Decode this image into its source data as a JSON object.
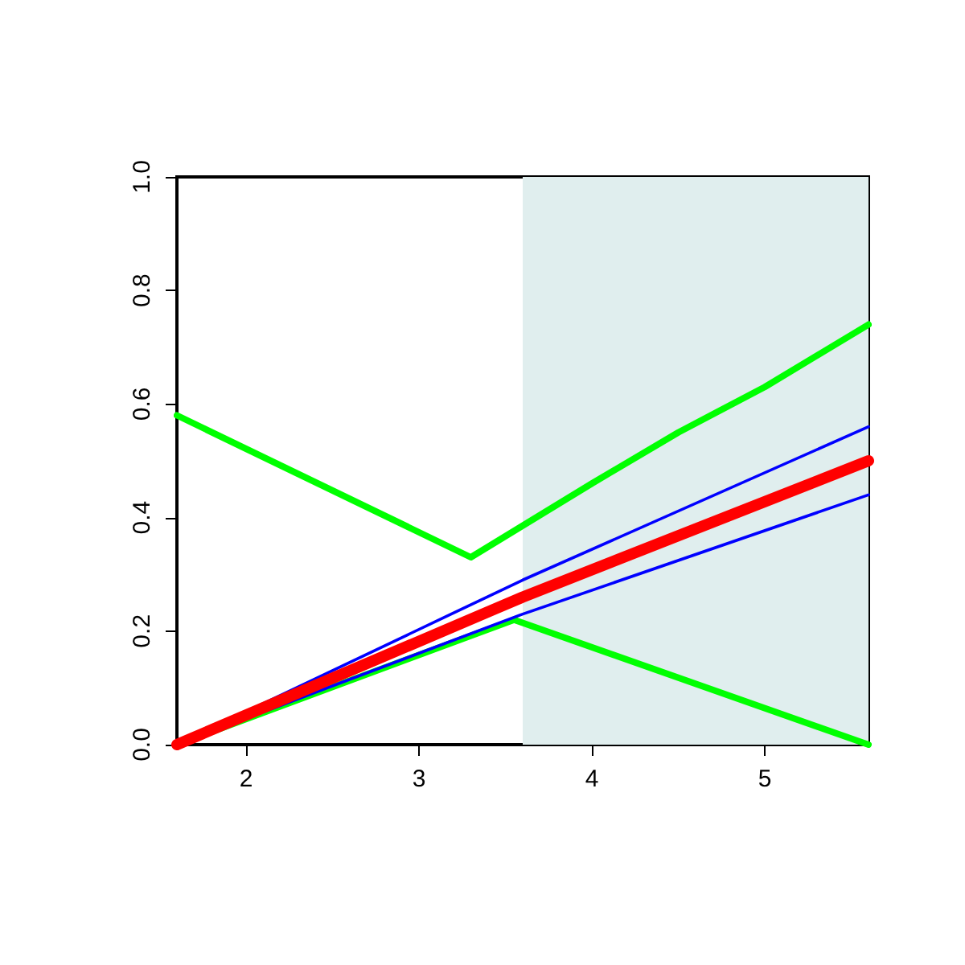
{
  "chart_data": {
    "type": "line",
    "xlim": [
      1.6,
      5.6
    ],
    "ylim": [
      0,
      1
    ],
    "xticks": [
      2,
      3,
      4,
      5
    ],
    "yticks": [
      {
        "value": 0,
        "label": "0.0"
      },
      {
        "value": 0.2,
        "label": "0.2"
      },
      {
        "value": 0.4,
        "label": "0.4"
      },
      {
        "value": 0.6,
        "label": "0.6"
      },
      {
        "value": 0.8,
        "label": "0.8"
      },
      {
        "value": 1,
        "label": "1.0"
      }
    ],
    "grid": false,
    "marker": "none",
    "line_style": "solid",
    "bands": [
      {
        "axis": "x",
        "from": 3.6,
        "to": 5.6,
        "color": "#e0eeee"
      }
    ],
    "series": [
      {
        "color": "#00ff00",
        "x": [
          1.6,
          3.3,
          4,
          4.5,
          5,
          5.6
        ],
        "values": [
          0.58,
          0.33,
          0.46,
          0.55,
          0.63,
          0.74
        ]
      },
      {
        "color": "#00ff00",
        "x": [
          1.6,
          3.55,
          5.6
        ],
        "values": [
          0,
          0.22,
          0
        ]
      },
      {
        "color": "#0000ff",
        "x": [
          1.6,
          3.6,
          5.6
        ],
        "values": [
          0,
          0.29,
          0.56
        ]
      },
      {
        "color": "#0000ff",
        "x": [
          1.6,
          3.6,
          5.6
        ],
        "values": [
          0,
          0.23,
          0.44
        ]
      },
      {
        "color": "#ff0000",
        "x": [
          1.6,
          3.6,
          5.6
        ],
        "values": [
          0,
          0.26,
          0.5
        ]
      }
    ]
  }
}
